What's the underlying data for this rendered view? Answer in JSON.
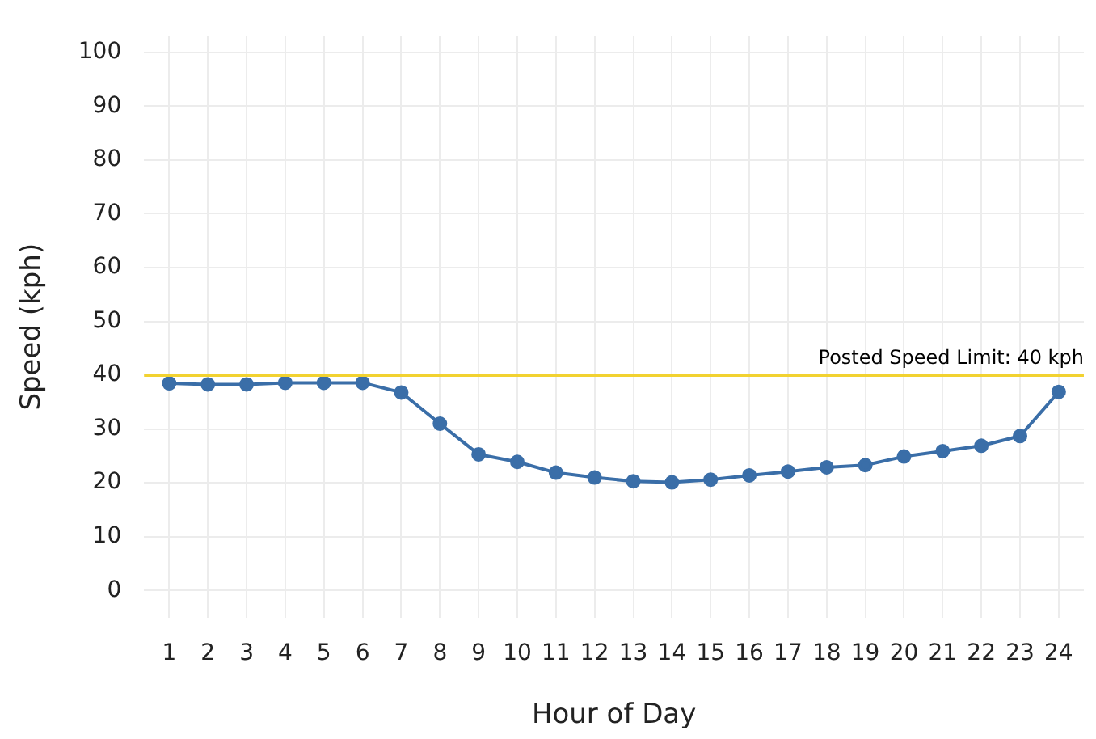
{
  "chart_data": {
    "type": "line",
    "xlabel": "Hour of Day",
    "ylabel": "Speed (kph)",
    "x": [
      1,
      2,
      3,
      4,
      5,
      6,
      7,
      8,
      9,
      10,
      11,
      12,
      13,
      14,
      15,
      16,
      17,
      18,
      19,
      20,
      21,
      22,
      23,
      24
    ],
    "xlim": [
      0.35,
      24.65
    ],
    "xticks": [
      1,
      2,
      3,
      4,
      5,
      6,
      7,
      8,
      9,
      10,
      11,
      12,
      13,
      14,
      15,
      16,
      17,
      18,
      19,
      20,
      21,
      22,
      23,
      24
    ],
    "ylim": [
      -5,
      103
    ],
    "yticks": [
      0,
      10,
      20,
      30,
      40,
      50,
      60,
      70,
      80,
      90,
      100
    ],
    "series": [
      {
        "color": "#3a6ea8",
        "values": [
          38.5,
          38.3,
          38.3,
          38.6,
          38.6,
          38.6,
          36.8,
          31,
          25.3,
          23.9,
          21.9,
          21,
          20.3,
          20.1,
          20.6,
          21.4,
          22.1,
          22.9,
          23.3,
          24.9,
          25.9,
          26.9,
          28.7,
          36.9
        ]
      }
    ],
    "ref_lines": [
      {
        "axis": "y",
        "value": 40,
        "label": "Posted Speed Limit: 40 kph",
        "color": "#f2d230"
      }
    ],
    "grid": true,
    "legend": false,
    "marker": "circle",
    "line_style": "solid"
  }
}
